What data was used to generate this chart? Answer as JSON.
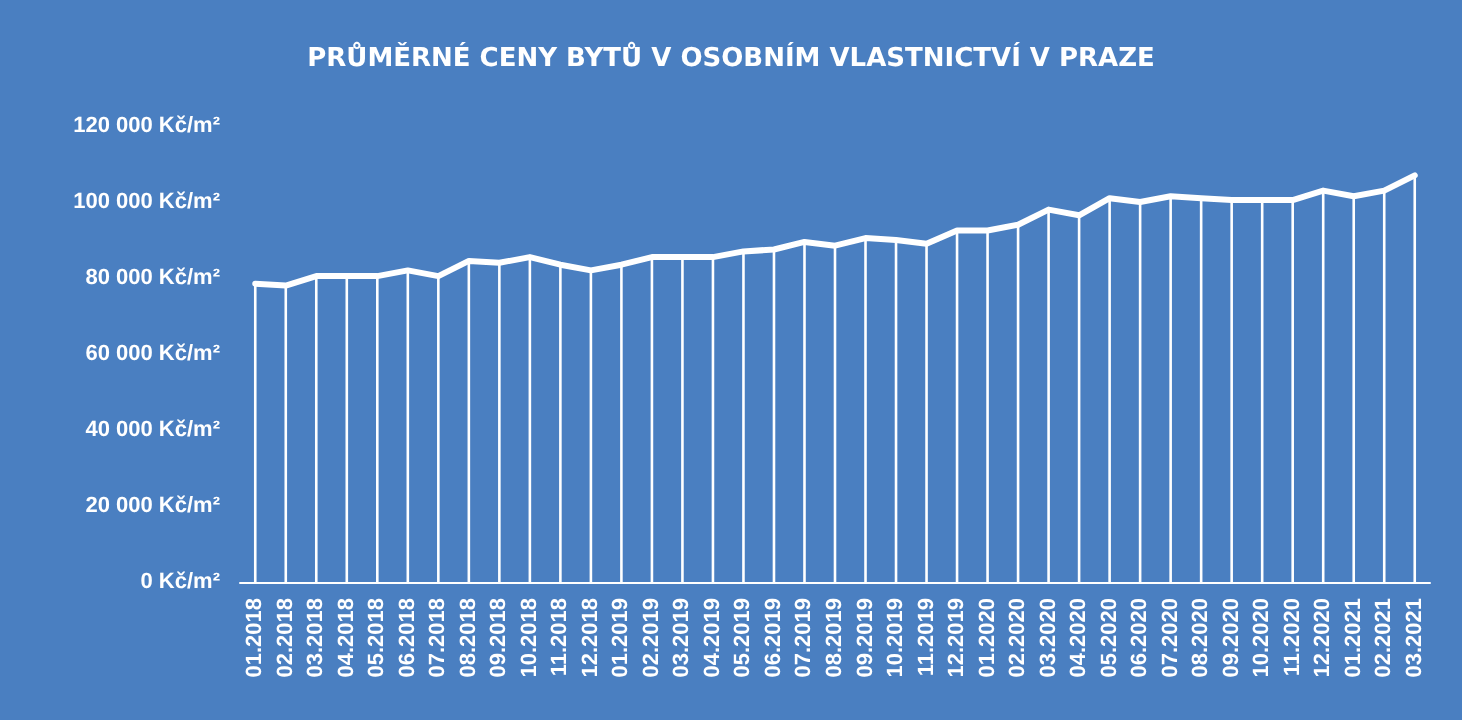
{
  "chart_data": {
    "type": "line",
    "title": "PRŮMĚRNÉ CENY BYTŮ V OSOBNÍM VLASTNICTVÍ V PRAZE",
    "categories": [
      "01.2018",
      "02.2018",
      "03.2018",
      "04.2018",
      "05.2018",
      "06.2018",
      "07.2018",
      "08.2018",
      "09.2018",
      "10.2018",
      "11.2018",
      "12.2018",
      "01.2019",
      "02.2019",
      "03.2019",
      "04.2019",
      "05.2019",
      "06.2019",
      "07.2019",
      "08.2019",
      "09.2019",
      "10.2019",
      "11.2019",
      "12.2019",
      "01.2020",
      "02.2020",
      "03.2020",
      "04.2020",
      "05.2020",
      "06.2020",
      "07.2020",
      "08.2020",
      "09.2020",
      "10.2020",
      "11.2020",
      "12.2020",
      "01.2021",
      "02.2021",
      "03.2021"
    ],
    "series": [
      {
        "type": "bar",
        "color": "#ffffff",
        "values": [
          78500,
          78000,
          80500,
          80500,
          80500,
          82000,
          80500,
          84500,
          84000,
          85500,
          83500,
          82000,
          83500,
          85500,
          85500,
          85500,
          87000,
          87500,
          89500,
          88500,
          90500,
          90000,
          89000,
          92500,
          92500,
          94000,
          98000,
          96500,
          101000,
          100000,
          101500,
          101000,
          100500,
          100500,
          100500,
          103000,
          101500,
          103000,
          107000
        ]
      },
      {
        "color": "#ffffff",
        "values": [
          78500,
          78000,
          80500,
          80500,
          80500,
          82000,
          80500,
          84500,
          84000,
          85500,
          83500,
          82000,
          83500,
          85500,
          85500,
          85500,
          87000,
          87500,
          89500,
          88500,
          90500,
          90000,
          89000,
          92500,
          92500,
          94000,
          98000,
          96500,
          101000,
          100000,
          101500,
          101000,
          100500,
          100500,
          100500,
          103000,
          101500,
          103000,
          107000
        ]
      }
    ],
    "ylim": [
      0,
      120000
    ],
    "yticks": [
      {
        "value": 0,
        "label": "0 Kč/m²"
      },
      {
        "value": 20000,
        "label": "20 000 Kč/m²"
      },
      {
        "value": 40000,
        "label": "40 000 Kč/m²"
      },
      {
        "value": 60000,
        "label": "60 000 Kč/m²"
      },
      {
        "value": 80000,
        "label": "80 000 Kč/m²"
      },
      {
        "value": 100000,
        "label": "100 000 Kč/m²"
      },
      {
        "value": 120000,
        "label": "120 000 Kč/m²"
      }
    ],
    "grid": false,
    "marker": "none",
    "line_style": "solid"
  }
}
